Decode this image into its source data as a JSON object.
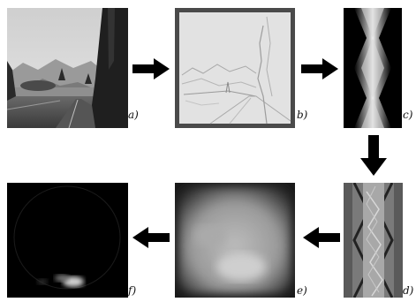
{
  "panels": [
    {
      "id": "a",
      "label": "a)",
      "description_name": "road-photo"
    },
    {
      "id": "b",
      "label": "b)",
      "description_name": "edge-filtered-image"
    },
    {
      "id": "c",
      "label": "c)",
      "description_name": "sinogram-transform"
    },
    {
      "id": "d",
      "label": "d)",
      "description_name": "filtered-sinogram"
    },
    {
      "id": "e",
      "label": "e)",
      "description_name": "blurred-reconstruction"
    },
    {
      "id": "f",
      "label": "f)",
      "description_name": "dark-reconstruction"
    }
  ],
  "colors": {
    "arrow": "#000000",
    "background": "#ffffff",
    "label": "#111111",
    "panel_b_border": "#4a4a4a"
  },
  "icons": {
    "arrow_right": "arrow-right-icon",
    "arrow_down": "arrow-down-icon",
    "arrow_left": "arrow-left-icon"
  }
}
